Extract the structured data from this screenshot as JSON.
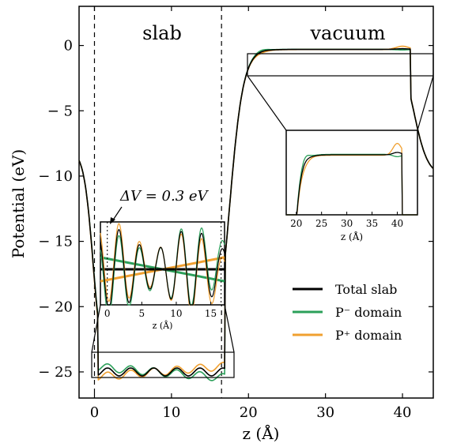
{
  "chart_data": {
    "type": "line",
    "xlabel": "z (Å)",
    "ylabel": "Potential (eV)",
    "xlim": [
      -2,
      44
    ],
    "ylim": [
      -27,
      3
    ],
    "xticks": [
      0,
      10,
      20,
      30,
      40
    ],
    "yticks": [
      0,
      -5,
      -10,
      -15,
      -20,
      -25
    ],
    "xtick_labels": [
      "0",
      "10",
      "20",
      "30",
      "40"
    ],
    "ytick_labels": [
      "0",
      "− 5",
      "− 10",
      "− 15",
      "− 20",
      "− 25"
    ],
    "slab_boundaries": [
      0,
      16.5
    ],
    "region_labels": {
      "slab": "slab",
      "vacuum": "vacuum"
    },
    "annotation": "ΔV = 0.3 eV",
    "legend": {
      "position": "lower right",
      "entries": [
        {
          "label": "Total slab",
          "color": "#000000"
        },
        {
          "label": "P⁻ domain",
          "color": "#2ca05a"
        },
        {
          "label": "P⁺ domain",
          "color": "#f0a030"
        }
      ]
    },
    "series": [
      {
        "name": "Total slab",
        "color": "#000000"
      },
      {
        "name": "P⁻ domain",
        "color": "#2ca05a"
      },
      {
        "name": "P⁺ domain",
        "color": "#f0a030"
      }
    ],
    "vacuum_level": -0.3,
    "slab_mean": -25.0,
    "oscillation_amplitude": 0.3,
    "inset_vacuum": {
      "xlim": [
        18,
        44
      ],
      "xticks": [
        20,
        25,
        30,
        35,
        40
      ],
      "xlabel": "z (Å)"
    },
    "inset_slab": {
      "xlim": [
        -1,
        17
      ],
      "xticks": [
        0,
        5,
        10,
        15
      ],
      "xlabel": "z (Å)"
    }
  }
}
